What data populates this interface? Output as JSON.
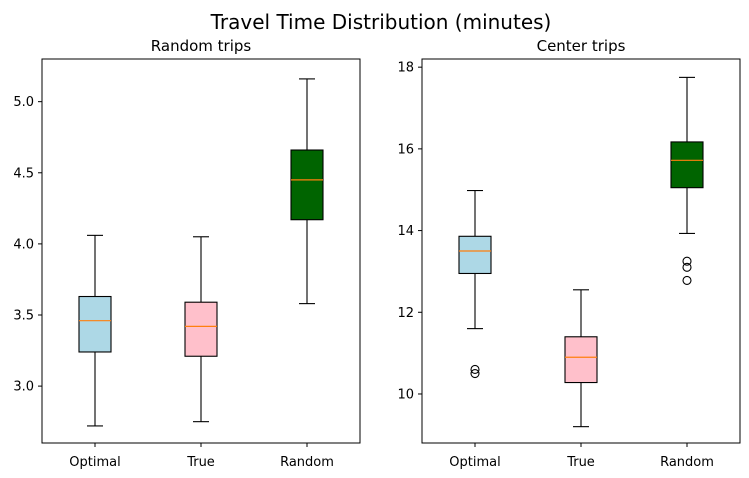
{
  "figure": {
    "title": "Travel Time Distribution (minutes)"
  },
  "chart_data": [
    {
      "type": "box",
      "title": "Random trips",
      "categories": [
        "Optimal",
        "True",
        "Random"
      ],
      "ylim": [
        2.6,
        5.3
      ],
      "yticks": [
        3.0,
        3.5,
        4.0,
        4.5,
        5.0
      ],
      "ytick_labels": [
        "3.0",
        "3.5",
        "4.0",
        "4.5",
        "5.0"
      ],
      "boxes": [
        {
          "name": "Optimal",
          "color": "#add8e6",
          "whisker_low": 2.72,
          "q1": 3.24,
          "median": 3.46,
          "q3": 3.63,
          "whisker_high": 4.06,
          "outliers": []
        },
        {
          "name": "True",
          "color": "#ffc0cb",
          "whisker_low": 2.75,
          "q1": 3.21,
          "median": 3.42,
          "q3": 3.59,
          "whisker_high": 4.05,
          "outliers": []
        },
        {
          "name": "Random",
          "color": "#006400",
          "whisker_low": 3.58,
          "q1": 4.17,
          "median": 4.45,
          "q3": 4.66,
          "whisker_high": 5.16,
          "outliers": []
        }
      ]
    },
    {
      "type": "box",
      "title": "Center trips",
      "categories": [
        "Optimal",
        "True",
        "Random"
      ],
      "ylim": [
        8.8,
        18.2
      ],
      "yticks": [
        10,
        12,
        14,
        16,
        18
      ],
      "ytick_labels": [
        "10",
        "12",
        "14",
        "16",
        "18"
      ],
      "boxes": [
        {
          "name": "Optimal",
          "color": "#add8e6",
          "whisker_low": 11.6,
          "q1": 12.95,
          "median": 13.5,
          "q3": 13.86,
          "whisker_high": 14.98,
          "outliers": [
            10.5,
            10.6
          ]
        },
        {
          "name": "True",
          "color": "#ffc0cb",
          "whisker_low": 9.2,
          "q1": 10.28,
          "median": 10.9,
          "q3": 11.4,
          "whisker_high": 12.55,
          "outliers": []
        },
        {
          "name": "Random",
          "color": "#006400",
          "whisker_low": 13.93,
          "q1": 15.05,
          "median": 15.72,
          "q3": 16.17,
          "whisker_high": 17.75,
          "outliers": [
            12.78,
            13.1,
            13.25
          ]
        }
      ]
    }
  ],
  "style": {
    "median_color": "#ff7f0e",
    "line_color": "#000000"
  }
}
